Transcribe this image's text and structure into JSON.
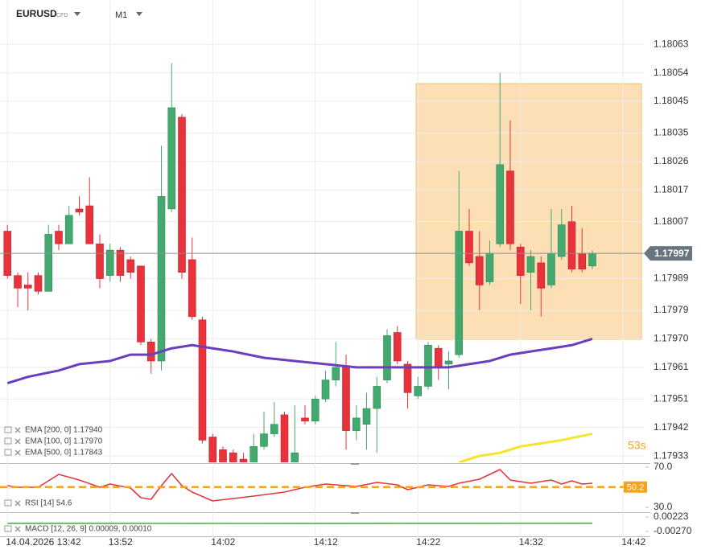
{
  "chart_data": [
    {
      "type": "candlestick",
      "title": "EURUSD",
      "subtitle": "CFD",
      "timeframe": "M1",
      "open": [
        1.18004,
        1.1799,
        1.17987,
        1.1799,
        1.17985,
        1.18004,
        1.18,
        1.18011,
        1.18012,
        1.18,
        1.1799,
        1.17998,
        1.17995,
        1.17993,
        1.17969,
        1.17963,
        1.18011,
        1.1804,
        1.17995,
        1.17976,
        1.17939,
        1.17935,
        1.17934,
        1.17932,
        1.1793,
        1.17936,
        1.1794,
        1.17946,
        1.17931,
        1.17945,
        1.17944,
        1.17951,
        1.17957,
        1.17961,
        1.17941,
        1.17943,
        1.17948,
        1.17957,
        1.17972,
        1.17962,
        1.17952,
        1.17955,
        1.17967,
        1.17962,
        1.17965,
        1.18004,
        1.17996,
        1.17988,
        1.18,
        1.18023,
        1.17999,
        1.17991,
        1.17994,
        1.17987,
        1.17996,
        1.18007,
        1.17997,
        1.17993
      ],
      "high": [
        1.18006,
        1.17991,
        1.17991,
        1.17991,
        1.18006,
        1.18006,
        1.18012,
        1.18015,
        1.18021,
        1.18003,
        1.18,
        1.17999,
        1.17996,
        1.17993,
        1.1797,
        1.18031,
        1.18057,
        1.18041,
        1.18002,
        1.17977,
        1.1794,
        1.17936,
        1.17935,
        1.17934,
        1.1794,
        1.17947,
        1.1795,
        1.17947,
        1.17949,
        1.17949,
        1.17952,
        1.1796,
        1.17969,
        1.17965,
        1.17949,
        1.17953,
        1.17958,
        1.17973,
        1.17974,
        1.17963,
        1.17958,
        1.17969,
        1.17968,
        1.17966,
        1.18023,
        1.18011,
        1.18004,
        1.18001,
        1.18054,
        1.18039,
        1.18,
        1.17998,
        1.17996,
        1.18011,
        1.18011,
        1.18012,
        1.18005,
        1.17998
      ],
      "low": [
        1.17989,
        1.1798,
        1.17979,
        1.17984,
        1.17985,
        1.17998,
        1.18,
        1.18009,
        1.18,
        1.17986,
        1.17988,
        1.17988,
        1.17989,
        1.17968,
        1.17959,
        1.1796,
        1.1801,
        1.17989,
        1.17976,
        1.17937,
        1.17929,
        1.17927,
        1.17929,
        1.17929,
        1.17929,
        1.17935,
        1.17939,
        1.17929,
        1.1793,
        1.17943,
        1.17943,
        1.1795,
        1.17955,
        1.17935,
        1.17938,
        1.17935,
        1.17934,
        1.17956,
        1.17962,
        1.17948,
        1.17951,
        1.17954,
        1.17957,
        1.17954,
        1.17964,
        1.17993,
        1.17979,
        1.17987,
        1.17999,
        1.17998,
        1.17981,
        1.17979,
        1.17977,
        1.17986,
        1.17995,
        1.17991,
        1.17991,
        1.17992
      ],
      "close": [
        1.1799,
        1.17986,
        1.17986,
        1.17985,
        1.18003,
        1.18,
        1.18009,
        1.1801,
        1.18,
        1.17989,
        1.17998,
        1.1799,
        1.17991,
        1.17969,
        1.17963,
        1.18015,
        1.18043,
        1.17991,
        1.17977,
        1.17938,
        1.17931,
        1.17929,
        1.1793,
        1.1793,
        1.17936,
        1.1794,
        1.17943,
        1.1793,
        1.17934,
        1.17944,
        1.17951,
        1.17957,
        1.17961,
        1.17941,
        1.17945,
        1.17948,
        1.17955,
        1.17971,
        1.17963,
        1.17953,
        1.17955,
        1.17968,
        1.17961,
        1.17963,
        1.18004,
        1.17994,
        1.17987,
        1.17997,
        1.18025,
        1.18,
        1.1799,
        1.17996,
        1.17986,
        1.17997,
        1.18006,
        1.17992,
        1.17992,
        1.17997
      ],
      "up_color": "#43a96f",
      "down_color": "#e8323c",
      "series": [
        {
          "name": "EMA [200, 0] 1.17940",
          "color": "#f3e52c",
          "x": [
            44,
            46,
            48,
            50,
            52,
            54,
            57
          ],
          "values": [
            1.17931,
            1.17933,
            1.17934,
            1.17936,
            1.17937,
            1.17938,
            1.1794
          ]
        },
        {
          "name": "EMA [100, 0] 1.17970",
          "color": "#6a3fbf",
          "x": [
            0,
            2,
            5,
            7,
            10,
            12,
            14,
            16,
            18,
            20,
            22,
            25,
            28,
            31,
            34,
            37,
            40,
            43,
            45,
            47,
            49,
            51,
            53,
            55,
            57
          ],
          "values": [
            1.17956,
            1.17958,
            1.1796,
            1.17962,
            1.17963,
            1.17965,
            1.17965,
            1.17967,
            1.17968,
            1.17967,
            1.17966,
            1.17964,
            1.17963,
            1.17962,
            1.17961,
            1.17961,
            1.17961,
            1.17961,
            1.17962,
            1.17963,
            1.17965,
            1.17966,
            1.17967,
            1.17968,
            1.1797
          ]
        }
      ],
      "extra_legend": [
        "EMA [500, 0] 1.17843"
      ],
      "last_price": 1.17997,
      "countdown": "53s",
      "xlim": [
        -0.725,
        62.02
      ],
      "xticks": [
        {
          "value": 0,
          "label": "14.04.2026 13:42"
        },
        {
          "value": 10,
          "label": "13:52"
        },
        {
          "value": 20,
          "label": "14:02"
        },
        {
          "value": 30,
          "label": "14:12"
        },
        {
          "value": 40,
          "label": "14:22"
        },
        {
          "value": 50,
          "label": "14:32"
        },
        {
          "value": 60,
          "label": "14:42"
        }
      ],
      "ylim": [
        1.17931,
        1.18077
      ],
      "yticks": [
        1.18063,
        1.18054,
        1.18045,
        1.18035,
        1.18026,
        1.18017,
        1.18007,
        1.17989,
        1.17979,
        {
          "value": 1.1797,
          "label": "1.17970"
        },
        1.17961,
        1.17951,
        1.17942,
        1.17933
      ],
      "grid": true
    },
    {
      "type": "line",
      "series": [
        {
          "name": "RSI [14] 54.6",
          "color": "#e0383a",
          "x": [
            0,
            1,
            3,
            4,
            5,
            7,
            9,
            10,
            12,
            13,
            14,
            15,
            16,
            17,
            18,
            20,
            22,
            24,
            27,
            29,
            31,
            34,
            36,
            38,
            39,
            41,
            43,
            44,
            46,
            48,
            49,
            51,
            53,
            54,
            55,
            56,
            57
          ],
          "values": [
            51.6,
            50,
            50,
            56.4,
            62.8,
            57.2,
            50,
            53.2,
            49.2,
            39.6,
            38,
            51.6,
            63.6,
            51.6,
            45.2,
            36.4,
            38.8,
            41.2,
            45.2,
            50,
            53.2,
            50.8,
            54.8,
            52.4,
            47.6,
            52.4,
            50.8,
            54,
            58,
            67.6,
            57.2,
            54,
            57.2,
            53.2,
            56.4,
            53.2,
            54
          ]
        }
      ],
      "level": 50.2,
      "level_color": "#f7a21b",
      "ylim": [
        26.8,
        72.4
      ],
      "yticks": [
        {
          "value": 70,
          "label": "70.0"
        },
        {
          "value": 30,
          "label": "30.0"
        }
      ]
    },
    {
      "type": "line",
      "series": [
        {
          "name": "MACD [12, 26, 9] 0.00009, 0.00010",
          "color": "#4caf50",
          "x": [
            0,
            15,
            30,
            45,
            57
          ],
          "values": [
            5e-05,
            4e-05,
            2e-05,
            6e-05,
            9e-05
          ]
        }
      ],
      "ylim": [
        -0.00462,
        0.0036
      ],
      "yticks": [
        0.00223,
        {
          "value": -0.0027,
          "label": "-0.00270"
        }
      ]
    }
  ]
}
